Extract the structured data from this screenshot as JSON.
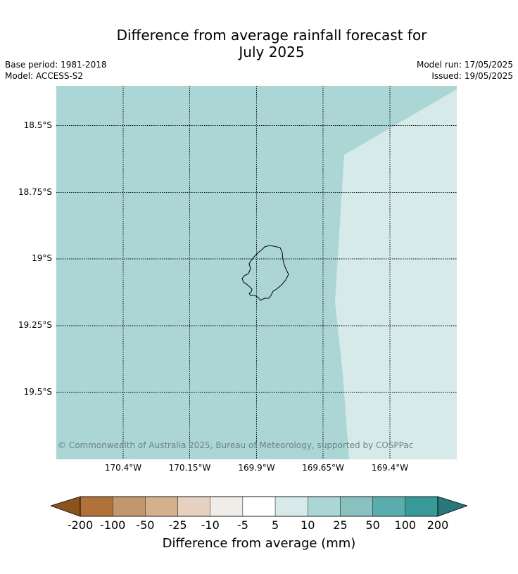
{
  "header": {
    "title_line1": "Difference from average rainfall forecast for",
    "title_line2": "July 2025",
    "base_period": "Base period: 1981-2018",
    "model": "Model: ACCESS-S2",
    "model_run": "Model run: 17/05/2025",
    "issued": "Issued: 19/05/2025"
  },
  "map": {
    "latitude_labels": [
      "18.5°S",
      "18.75°S",
      "19°S",
      "19.25°S",
      "19.5°S"
    ],
    "longitude_labels": [
      "170.4°W",
      "170.15°W",
      "169.9°W",
      "169.65°W",
      "169.4°W"
    ],
    "copyright": "© Commonwealth of Australia 2025, Bureau of Meteorology, supported by COSPPac",
    "category_colors": {
      "10_to_25": "#acd5d5",
      "5_to_10": "#d5eae9"
    }
  },
  "colorbar": {
    "title": "Difference from average (mm)",
    "ticks": [
      "-200",
      "-100",
      "-50",
      "-25",
      "-10",
      "-5",
      "5",
      "10",
      "25",
      "50",
      "100",
      "200"
    ],
    "colors": [
      "#8c531d",
      "#b07238",
      "#c2976d",
      "#d5b08d",
      "#e6d1c0",
      "#f0ece8",
      "#ffffff",
      "#d5eae9",
      "#acd5d5",
      "#89c1c0",
      "#5aadac",
      "#389a98",
      "#29777a"
    ]
  }
}
